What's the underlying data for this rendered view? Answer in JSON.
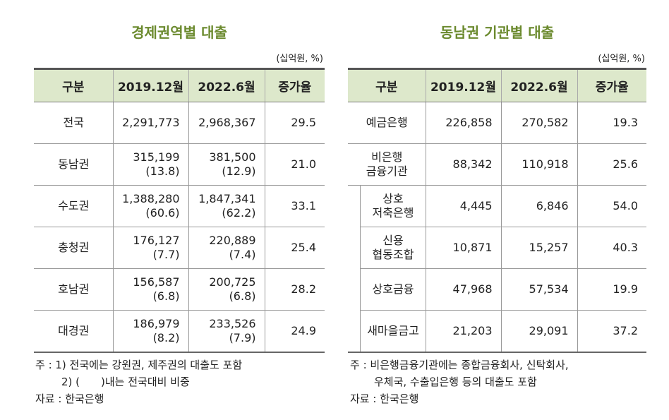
{
  "left": {
    "title": "경제권역별 대출",
    "unit": "(십억원, %)",
    "headers": [
      "구분",
      "2019.12월",
      "2022.6월",
      "증가율"
    ],
    "rows": [
      {
        "label": "전국",
        "v2019": "2,291,773",
        "s2019": "",
        "v2022": "2,968,367",
        "s2022": "",
        "rate": "29.5"
      },
      {
        "label": "동남권",
        "v2019": "315,199",
        "s2019": "(13.8)",
        "v2022": "381,500",
        "s2022": "(12.9)",
        "rate": "21.0"
      },
      {
        "label": "수도권",
        "v2019": "1,388,280",
        "s2019": "(60.6)",
        "v2022": "1,847,341",
        "s2022": "(62.2)",
        "rate": "33.1"
      },
      {
        "label": "충청권",
        "v2019": "176,127",
        "s2019": "(7.7)",
        "v2022": "220,889",
        "s2022": "(7.4)",
        "rate": "25.4"
      },
      {
        "label": "호남권",
        "v2019": "156,587",
        "s2019": "(6.8)",
        "v2022": "200,725",
        "s2022": "(6.8)",
        "rate": "28.2"
      },
      {
        "label": "대경권",
        "v2019": "186,979",
        "s2019": "(8.2)",
        "v2022": "233,526",
        "s2022": "(7.9)",
        "rate": "24.9"
      }
    ],
    "notes": [
      "주 : 1) 전국에는 강원권, 제주권의 대출도 포함",
      "2) (　　)내는 전국대비 비중",
      "자료 : 한국은행"
    ]
  },
  "right": {
    "title": "동남권 기관별 대출",
    "unit": "(십억원, %)",
    "headers": [
      "구분",
      "2019.12월",
      "2022.6월",
      "증가율"
    ],
    "rows": [
      {
        "l1": "예금은행",
        "l2": "",
        "v2019": "226,858",
        "v2022": "270,582",
        "rate": "19.3"
      },
      {
        "l1": "비은행",
        "l2": "금융기관",
        "v2019": "88,342",
        "v2022": "110,918",
        "rate": "25.6"
      },
      {
        "l1": "상호",
        "l2": "저축은행",
        "v2019": "4,445",
        "v2022": "6,846",
        "rate": "54.0"
      },
      {
        "l1": "신용",
        "l2": "협동조합",
        "v2019": "10,871",
        "v2022": "15,257",
        "rate": "40.3"
      },
      {
        "l1": "상호금융",
        "l2": "",
        "v2019": "47,968",
        "v2022": "57,534",
        "rate": "19.9"
      },
      {
        "l1": "새마을금고",
        "l2": "",
        "v2019": "21,203",
        "v2022": "29,091",
        "rate": "37.2"
      }
    ],
    "notes": [
      "주 : 비은행금융기관에는 종합금융회사, 신탁회사,",
      "우체국, 수출입은행 등의 대출도 포함",
      "자료 : 한국은행"
    ]
  }
}
